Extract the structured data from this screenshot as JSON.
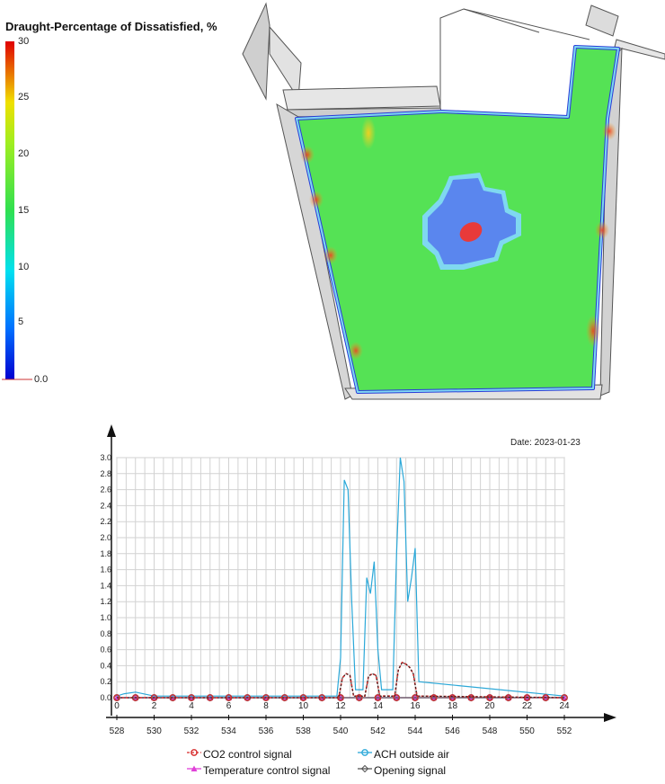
{
  "heatmap": {
    "colorbar_title": "Draught-Percentage of Dissatisfied, %",
    "colorbar_ticks": [
      "30",
      "25",
      "20",
      "15",
      "10",
      "5",
      "0.0"
    ],
    "colorbar_range": [
      0,
      30
    ],
    "colors": {
      "floor": "#55e255",
      "low_zone": "#5a86ee",
      "hotspot": "#e83a3a",
      "edge_low": "#2a3cd8",
      "edge_warm": "#f0a020",
      "wall_outline": "#3a3a3a"
    }
  },
  "chart_data": {
    "type": "line",
    "date_label": "Date: 2023-01-23",
    "x_top_ticks": [
      "0",
      "2",
      "4",
      "6",
      "8",
      "10",
      "12",
      "14",
      "16",
      "18",
      "20",
      "22",
      "24"
    ],
    "x_bottom_ticks": [
      "528",
      "530",
      "532",
      "534",
      "536",
      "538",
      "540",
      "542",
      "544",
      "546",
      "548",
      "550",
      "552"
    ],
    "y_ticks": [
      "0.0",
      "0.2",
      "0.4",
      "0.6",
      "0.8",
      "1.0",
      "1.2",
      "1.4",
      "1.6",
      "1.8",
      "2.0",
      "2.2",
      "2.4",
      "2.6",
      "2.8",
      "3.0"
    ],
    "xlim": [
      0,
      24
    ],
    "ylim": [
      0,
      3.0
    ],
    "grid": true,
    "legend_position": "bottom",
    "series": [
      {
        "name": "CO2 control  signal",
        "color": "#d62a2a",
        "marker": "circle",
        "dashed": true,
        "x": [
          0,
          11.9,
          12.1,
          12.3,
          12.5,
          12.7,
          13.3,
          13.5,
          13.7,
          13.9,
          14.1,
          14.9,
          15.1,
          15.3,
          15.5,
          15.7,
          15.9,
          16.1,
          24
        ],
        "y": [
          0.0,
          0.0,
          0.25,
          0.3,
          0.28,
          0.02,
          0.02,
          0.27,
          0.3,
          0.28,
          0.02,
          0.02,
          0.35,
          0.44,
          0.42,
          0.38,
          0.3,
          0.02,
          0.0
        ]
      },
      {
        "name": "ACH outside air",
        "color": "#2ba8d8",
        "marker": "circle",
        "dashed": false,
        "x": [
          0,
          0.4,
          1.0,
          1.6,
          2.0,
          11.8,
          12.0,
          12.2,
          12.4,
          12.6,
          12.8,
          13.2,
          13.4,
          13.6,
          13.8,
          14.0,
          14.2,
          14.8,
          15.0,
          15.2,
          15.4,
          15.6,
          15.8,
          16.0,
          16.2,
          24
        ],
        "y": [
          0.02,
          0.05,
          0.07,
          0.04,
          0.02,
          0.02,
          0.5,
          2.72,
          2.6,
          1.2,
          0.1,
          0.1,
          1.5,
          1.3,
          1.7,
          0.6,
          0.1,
          0.1,
          1.8,
          3.0,
          2.7,
          1.2,
          1.5,
          1.87,
          0.2,
          0.02
        ]
      },
      {
        "name": "Temperature control signal",
        "color": "#e040d8",
        "marker": "triangle",
        "dashed": false,
        "x": [
          0,
          24
        ],
        "y": [
          0.0,
          0.0
        ]
      },
      {
        "name": "Opening signal",
        "color": "#555555",
        "marker": "diamond",
        "dashed": false,
        "x": [
          0,
          24
        ],
        "y": [
          0.0,
          0.0
        ]
      }
    ]
  }
}
